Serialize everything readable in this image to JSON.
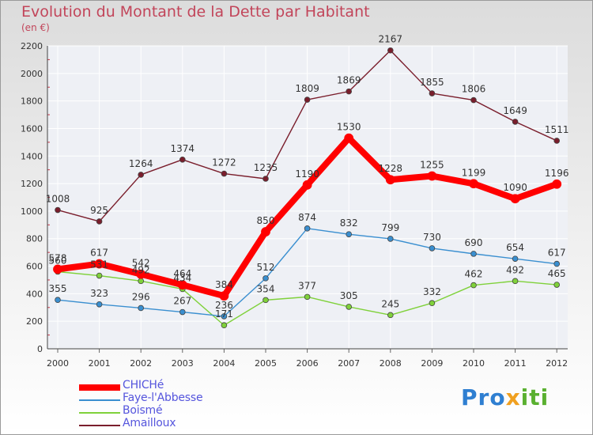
{
  "header": {
    "title": "Evolution du Montant de la Dette par Habitant",
    "unit": "(en €)"
  },
  "brand": {
    "text_a": "Pro",
    "text_b": "x",
    "text_c": "iti"
  },
  "chart_data": {
    "type": "line",
    "title": "Evolution du Montant de la Dette par Habitant",
    "subtitle": "(en €)",
    "xlabel": "",
    "ylabel": "",
    "ylim": [
      0,
      2200
    ],
    "yticks": [
      0,
      200,
      400,
      600,
      800,
      1000,
      1200,
      1400,
      1600,
      1800,
      2000,
      2200
    ],
    "grid": true,
    "legend_position": "bottom-left",
    "categories": [
      "2000",
      "2001",
      "2002",
      "2003",
      "2004",
      "2005",
      "2006",
      "2007",
      "2008",
      "2009",
      "2010",
      "2011",
      "2012"
    ],
    "series": [
      {
        "name": "CHICHé",
        "color": "#ff0000",
        "emphasis": true,
        "values": [
          578,
          617,
          542,
          464,
          384,
          850,
          1190,
          1530,
          1228,
          1255,
          1199,
          1090,
          1196
        ],
        "labels": [
          "578",
          "617",
          "542",
          "464",
          "384",
          "850",
          "1190",
          "1530",
          "1228",
          "1255",
          "1199",
          "1090",
          "1196"
        ]
      },
      {
        "name": "Faye-l'Abbesse",
        "color": "#3a8fd0",
        "values": [
          355,
          323,
          296,
          267,
          236,
          512,
          874,
          832,
          799,
          730,
          690,
          654,
          617
        ],
        "labels": [
          "355",
          "323",
          "296",
          "267",
          "236",
          "512",
          "874",
          "832",
          "799",
          "730",
          "690",
          "654",
          "617"
        ]
      },
      {
        "name": "Boismé",
        "color": "#7fd13a",
        "values": [
          560,
          531,
          492,
          434,
          171,
          354,
          377,
          305,
          245,
          332,
          462,
          492,
          465
        ],
        "labels": [
          "560",
          "531",
          "492",
          "434",
          "171",
          "354",
          "377",
          "305",
          "245",
          "332",
          "462",
          "492",
          "465"
        ]
      },
      {
        "name": "Amailloux",
        "color": "#7a1e2c",
        "values": [
          1008,
          925,
          1264,
          1374,
          1272,
          1235,
          1809,
          1869,
          2167,
          1855,
          1806,
          1649,
          1511
        ],
        "labels": [
          "1008",
          "925",
          "1264",
          "1374",
          "1272",
          "1235",
          "1809",
          "1869",
          "2167",
          "1855",
          "1806",
          "1649",
          "1511"
        ]
      }
    ]
  }
}
